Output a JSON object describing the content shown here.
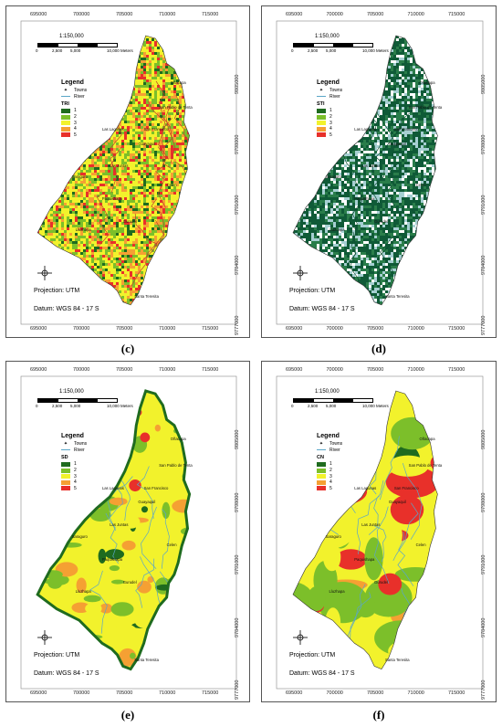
{
  "panels": [
    {
      "caption": "(c)",
      "legend_layer": "TRI",
      "palette": [
        "#1f6b1f",
        "#7cbf2a",
        "#f2f22c",
        "#f5a033",
        "#e8302a"
      ],
      "mix": [
        0.08,
        0.22,
        0.42,
        0.18,
        0.1
      ],
      "river_color": "#c23a2a"
    },
    {
      "caption": "(d)",
      "legend_layer": "STI",
      "palette": [
        "#0f5a37",
        "#2a7d4a",
        "#a6cfd2",
        "#ffffff",
        "#e8302a"
      ],
      "mix": [
        0.45,
        0.22,
        0.18,
        0.15,
        0.0
      ],
      "river_color": "#0d4f32"
    },
    {
      "caption": "(e)",
      "legend_layer": "SD",
      "palette": [
        "#1f6b1f",
        "#7cbf2a",
        "#f2f22c",
        "#f5a033",
        "#e8302a"
      ],
      "mix": [
        0.15,
        0.3,
        0.3,
        0.18,
        0.07
      ],
      "river_color": "#5aa6c8"
    },
    {
      "caption": "(f)",
      "legend_layer": "CN",
      "palette": [
        "#1f6b1f",
        "#7cbf2a",
        "#f2f22c",
        "#f5a033",
        "#e8302a"
      ],
      "mix": [
        0.1,
        0.3,
        0.25,
        0.15,
        0.2
      ],
      "river_color": "#5aa6c8"
    }
  ],
  "x_ticks": [
    "695000",
    "700000",
    "705000",
    "710000",
    "715000"
  ],
  "y_ticks": [
    "9805000",
    "9798000",
    "9791000",
    "9784000",
    "9777000"
  ],
  "scale": {
    "title": "1:150,000",
    "labels": [
      "0",
      "2,500",
      "5,000",
      "10,000 Meters"
    ]
  },
  "legend": {
    "title": "Legend",
    "towns": "Towns",
    "river": "River",
    "classes": [
      "1",
      "2",
      "3",
      "4",
      "5"
    ]
  },
  "projection": "Projection: UTM",
  "datum": "Datum: WGS 84 - 17 S",
  "towns": [
    "Las Lagunas",
    "San Francisco",
    "Guayaquil",
    "Las Juntas",
    "Santa Teresita",
    "San Pablo de Tenta",
    "Saraguro",
    "Paquishapa",
    "Gurudel",
    "Celen",
    "Oñacapa",
    "Lluzhapa"
  ],
  "colors": {
    "border": "#555555",
    "white": "#ffffff"
  }
}
